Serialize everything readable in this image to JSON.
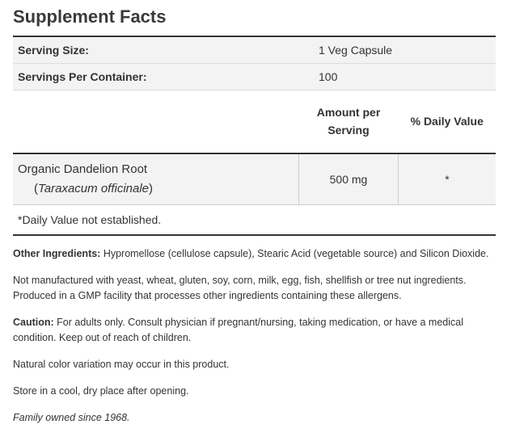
{
  "title": "Supplement Facts",
  "serving": [
    {
      "label": "Serving Size:",
      "value": "1 Veg Capsule"
    },
    {
      "label": "Servings Per Container:",
      "value": "100"
    }
  ],
  "table": {
    "headers": [
      "Amount per Serving",
      "% Daily Value"
    ],
    "rows": [
      {
        "name": "Organic Dandelion Root",
        "latin": [
          "(",
          "Taraxacum officinale",
          ")"
        ],
        "amount": "500 mg",
        "dv": "*"
      }
    ],
    "footnote": "*Daily Value not established."
  },
  "notes": [
    {
      "label": "Other Ingredients:",
      "text": "Hypromellose (cellulose capsule), Stearic Acid (vegetable source) and Silicon Dioxide."
    },
    {
      "text": "Not manufactured with yeast, wheat, gluten, soy, corn, milk, egg, fish, shellfish or tree nut ingredients. Produced in a GMP facility that processes other ingredients containing these allergens."
    },
    {
      "label": "Caution:",
      "text": "For adults only. Consult physician if pregnant/nursing, taking medication, or have a medical condition. Keep out of reach of children."
    },
    {
      "text": "Natural color variation may occur in this product."
    },
    {
      "text": "Store in a cool, dry place after opening."
    },
    {
      "text": "Family owned since 1968.",
      "italic": true
    }
  ]
}
